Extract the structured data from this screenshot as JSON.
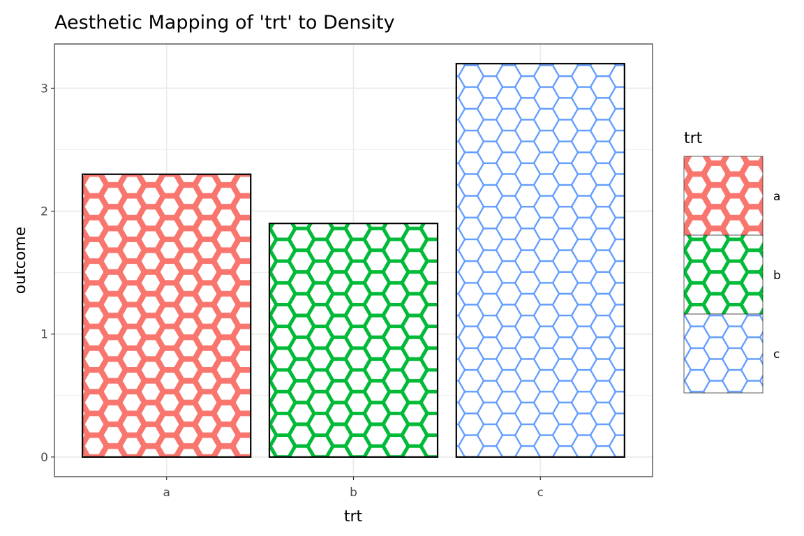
{
  "chart_data": {
    "type": "bar",
    "title": "Aesthetic Mapping of 'trt' to Density",
    "xlabel": "trt",
    "ylabel": "outcome",
    "categories": [
      "a",
      "b",
      "c"
    ],
    "values": [
      2.3,
      1.9,
      3.2
    ],
    "ylim": [
      -0.16,
      3.36
    ],
    "yticks": [
      0,
      1,
      2,
      3
    ],
    "grid": true,
    "fill_pattern": "hexagon",
    "pattern_density": {
      "a": "high",
      "b": "medium",
      "c": "low"
    },
    "colors": {
      "a": "#F8766D",
      "b": "#00BA38",
      "c": "#619CFF"
    },
    "legend": {
      "title": "trt",
      "entries": [
        "a",
        "b",
        "c"
      ],
      "placement": "right"
    }
  }
}
